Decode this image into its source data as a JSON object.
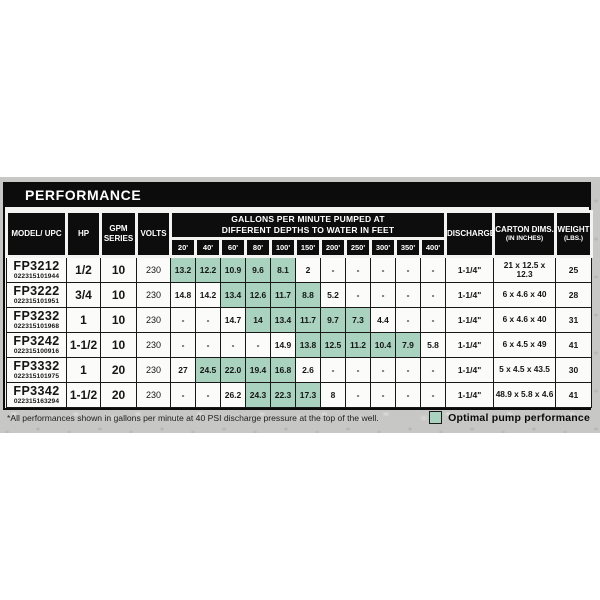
{
  "title": "PERFORMANCE",
  "colors": {
    "optimal_highlight": "#a9d2bf",
    "header_bg": "#0d0d0d",
    "band_gray": "#c7c8c6"
  },
  "table": {
    "col_headers": {
      "model": "MODEL/ UPC",
      "hp": "HP",
      "gpm_series": "GPM SERIES",
      "volts": "VOLTS",
      "gpm_group_line1": "GALLONS PER MINUTE PUMPED AT",
      "gpm_group_line2": "DIFFERENT DEPTHS TO WATER IN FEET",
      "depths": [
        "20'",
        "40'",
        "60'",
        "80'",
        "100'",
        "150'",
        "200'",
        "250'",
        "300'",
        "350'",
        "400'"
      ],
      "discharge": "DISCHARGE",
      "carton": "CARTON DIMS.",
      "carton_sub": "(IN INCHES)",
      "weight": "WEIGHT",
      "weight_sub": "(LBS.)"
    },
    "rows": [
      {
        "model": "FP3212",
        "upc": "022315101944",
        "hp": "1/2",
        "gpm_series": "10",
        "volts": "230",
        "depths": [
          "13.2",
          "12.2",
          "10.9",
          "9.6",
          "8.1",
          "2",
          "-",
          "-",
          "-",
          "-",
          "-"
        ],
        "optimal": [
          true,
          true,
          true,
          true,
          true,
          false,
          false,
          false,
          false,
          false,
          false
        ],
        "discharge": "1-1/4\"",
        "carton": "21 x 12.5 x 12.3",
        "weight": "25"
      },
      {
        "model": "FP3222",
        "upc": "022315101951",
        "hp": "3/4",
        "gpm_series": "10",
        "volts": "230",
        "depths": [
          "14.8",
          "14.2",
          "13.4",
          "12.6",
          "11.7",
          "8.8",
          "5.2",
          "-",
          "-",
          "-",
          "-"
        ],
        "optimal": [
          false,
          false,
          true,
          true,
          true,
          true,
          false,
          false,
          false,
          false,
          false
        ],
        "discharge": "1-1/4\"",
        "carton": "6 x 4.6 x 40",
        "weight": "28"
      },
      {
        "model": "FP3232",
        "upc": "022315101968",
        "hp": "1",
        "gpm_series": "10",
        "volts": "230",
        "depths": [
          "-",
          "-",
          "14.7",
          "14",
          "13.4",
          "11.7",
          "9.7",
          "7.3",
          "4.4",
          "-",
          "-"
        ],
        "optimal": [
          false,
          false,
          false,
          true,
          true,
          true,
          true,
          true,
          false,
          false,
          false
        ],
        "discharge": "1-1/4\"",
        "carton": "6 x 4.6 x 40",
        "weight": "31"
      },
      {
        "model": "FP3242",
        "upc": "022315100916",
        "hp": "1-1/2",
        "gpm_series": "10",
        "volts": "230",
        "depths": [
          "-",
          "-",
          "-",
          "-",
          "14.9",
          "13.8",
          "12.5",
          "11.2",
          "10.4",
          "7.9",
          "5.8"
        ],
        "optimal": [
          false,
          false,
          false,
          false,
          false,
          true,
          true,
          true,
          true,
          true,
          false
        ],
        "discharge": "1-1/4\"",
        "carton": "6 x 4.5 x 49",
        "weight": "41"
      },
      {
        "model": "FP3332",
        "upc": "022315101975",
        "hp": "1",
        "gpm_series": "20",
        "volts": "230",
        "depths": [
          "27",
          "24.5",
          "22.0",
          "19.4",
          "16.8",
          "2.6",
          "-",
          "-",
          "-",
          "-",
          "-"
        ],
        "optimal": [
          false,
          true,
          true,
          true,
          true,
          false,
          false,
          false,
          false,
          false,
          false
        ],
        "discharge": "1-1/4\"",
        "carton": "5 x 4.5 x 43.5",
        "weight": "30"
      },
      {
        "model": "FP3342",
        "upc": "022315163294",
        "hp": "1-1/2",
        "gpm_series": "20",
        "volts": "230",
        "depths": [
          "-",
          "-",
          "26.2",
          "24.3",
          "22.3",
          "17.3",
          "8",
          "-",
          "-",
          "-",
          "-"
        ],
        "optimal": [
          false,
          false,
          false,
          true,
          true,
          true,
          false,
          false,
          false,
          false,
          false
        ],
        "discharge": "1-1/4\"",
        "carton": "48.9 x 5.8 x 4.6",
        "weight": "41"
      }
    ]
  },
  "footnote": "*All performances shown in gallons per minute at 40 PSI discharge pressure at the top of the well.",
  "legend": {
    "label": "Optimal pump performance"
  }
}
